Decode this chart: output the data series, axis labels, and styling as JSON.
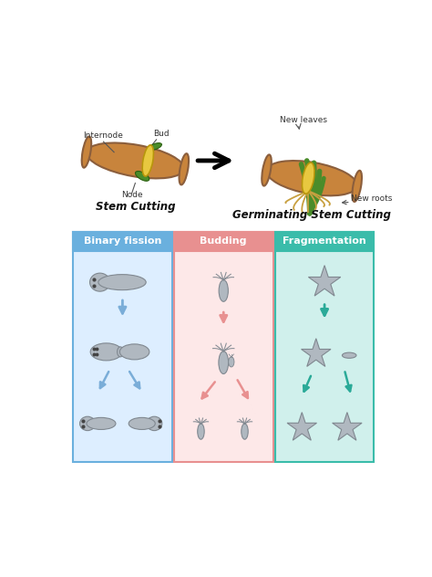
{
  "background_color": "#ffffff",
  "fig_width": 4.74,
  "fig_height": 6.32,
  "dpi": 100,
  "top_section": {
    "stem_cutting_label": "Stem Cutting",
    "germinating_label": "Germinating Stem Cutting",
    "internode_label": "Internode",
    "bud_label": "Bud",
    "node_label": "Node",
    "new_leaves_label": "New leaves",
    "new_roots_label": "New roots",
    "stem_color": "#c8843c",
    "node_color": "#e8c840",
    "leaf_color": "#4a8c2a",
    "root_color": "#c8a050",
    "ec_stem": "#8B5E3C"
  },
  "bottom_section": {
    "panels": [
      {
        "title": "Binary fission",
        "bg_color": "#ddeeff",
        "header_color": "#6ab0de",
        "arrow_color": "#7aadd8",
        "organism_color": "#b0b8c0",
        "border_color": "#6ab0de"
      },
      {
        "title": "Budding",
        "bg_color": "#fde8e8",
        "header_color": "#e89090",
        "arrow_color": "#e89090",
        "organism_color": "#b0b8c0",
        "border_color": "#e89090"
      },
      {
        "title": "Fragmentation",
        "bg_color": "#d0f0ec",
        "header_color": "#3abcaa",
        "arrow_color": "#2aaa98",
        "organism_color": "#b0b8c0",
        "border_color": "#3abcaa"
      }
    ]
  }
}
